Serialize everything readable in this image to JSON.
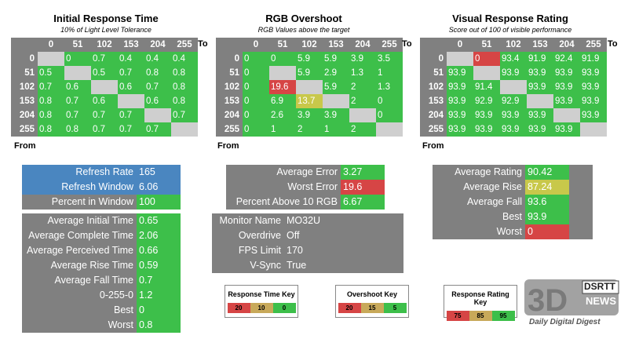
{
  "colors": {
    "grey": "#808080",
    "blank": "#cfcfcf",
    "green": "#3dbf4a",
    "yellow": "#c8c84a",
    "red": "#d64545",
    "blue": "#4a86c0",
    "keyRed": "#d64545",
    "keyTan": "#c8a95a",
    "keyGreen": "#3dbf4a"
  },
  "axes": {
    "cols": [
      "0",
      "51",
      "102",
      "153",
      "204",
      "255"
    ],
    "rows": [
      "0",
      "51",
      "102",
      "153",
      "204",
      "255"
    ],
    "to": "To",
    "from": "From"
  },
  "chart_data": [
    {
      "type": "heatmap",
      "title": "Initial Response Time",
      "subtitle": "10% of Light Level Tolerance",
      "values": [
        [
          null,
          "0",
          "0.7",
          "0.4",
          "0.4",
          "0.4"
        ],
        [
          "0.5",
          null,
          "0.5",
          "0.7",
          "0.8",
          "0.8"
        ],
        [
          "0.7",
          "0.6",
          null,
          "0.6",
          "0.7",
          "0.8"
        ],
        [
          "0.8",
          "0.7",
          "0.6",
          null,
          "0.6",
          "0.8"
        ],
        [
          "0.8",
          "0.7",
          "0.7",
          "0.7",
          null,
          "0.7"
        ],
        [
          "0.8",
          "0.8",
          "0.7",
          "0.7",
          "0.7",
          null
        ]
      ],
      "colorsGrid": [
        [
          "b",
          "g",
          "g",
          "g",
          "g",
          "g"
        ],
        [
          "g",
          "b",
          "g",
          "g",
          "g",
          "g"
        ],
        [
          "g",
          "g",
          "b",
          "g",
          "g",
          "g"
        ],
        [
          "g",
          "g",
          "g",
          "b",
          "g",
          "g"
        ],
        [
          "g",
          "g",
          "g",
          "g",
          "b",
          "g"
        ],
        [
          "g",
          "g",
          "g",
          "g",
          "g",
          "b"
        ]
      ]
    },
    {
      "type": "heatmap",
      "title": "RGB Overshoot",
      "subtitle": "RGB Values above the target",
      "values": [
        [
          "0",
          "0",
          "5.9",
          "5.9",
          "3.9",
          "3.5"
        ],
        [
          "0",
          null,
          "5.9",
          "2.9",
          "1.3",
          "1"
        ],
        [
          "0",
          "19.6",
          null,
          "5.9",
          "2",
          "1.3"
        ],
        [
          "0",
          "6.9",
          "13.7",
          null,
          "2",
          "0"
        ],
        [
          "0",
          "2.6",
          "3.9",
          "3.9",
          null,
          "0"
        ],
        [
          "0",
          "1",
          "2",
          "1",
          "2",
          null
        ]
      ],
      "colorsGrid": [
        [
          "g",
          "g",
          "g",
          "g",
          "g",
          "g"
        ],
        [
          "g",
          "b",
          "g",
          "g",
          "g",
          "g"
        ],
        [
          "g",
          "r",
          "b",
          "g",
          "g",
          "g"
        ],
        [
          "g",
          "g",
          "y",
          "b",
          "g",
          "g"
        ],
        [
          "g",
          "g",
          "g",
          "g",
          "b",
          "g"
        ],
        [
          "g",
          "g",
          "g",
          "g",
          "g",
          "b"
        ]
      ]
    },
    {
      "type": "heatmap",
      "title": "Visual Response Rating",
      "subtitle": "Score out of 100 of visible performance",
      "values": [
        [
          null,
          "0",
          "93.4",
          "91.9",
          "92.4",
          "91.9"
        ],
        [
          "93.9",
          null,
          "93.9",
          "93.9",
          "93.9",
          "93.9"
        ],
        [
          "93.9",
          "91.4",
          null,
          "93.9",
          "93.9",
          "93.9"
        ],
        [
          "93.9",
          "92.9",
          "92.9",
          null,
          "93.9",
          "93.9"
        ],
        [
          "93.9",
          "93.9",
          "93.9",
          "93.9",
          null,
          "93.9"
        ],
        [
          "93.9",
          "93.9",
          "93.9",
          "93.9",
          "93.9",
          null
        ]
      ],
      "colorsGrid": [
        [
          "b",
          "r",
          "g",
          "g",
          "g",
          "g"
        ],
        [
          "g",
          "b",
          "g",
          "g",
          "g",
          "g"
        ],
        [
          "g",
          "g",
          "b",
          "g",
          "g",
          "g"
        ],
        [
          "g",
          "g",
          "g",
          "b",
          "g",
          "g"
        ],
        [
          "g",
          "g",
          "g",
          "g",
          "b",
          "g"
        ],
        [
          "g",
          "g",
          "g",
          "g",
          "g",
          "b"
        ]
      ]
    }
  ],
  "refresh": [
    {
      "label": "Refresh Rate",
      "value": "165",
      "c": "blue"
    },
    {
      "label": "Refresh Window",
      "value": "6.06",
      "c": "blue"
    },
    {
      "label": "Percent in Window",
      "value": "100",
      "c": "green"
    }
  ],
  "errors": [
    {
      "label": "Average Error",
      "value": "3.27",
      "c": "green"
    },
    {
      "label": "Worst Error",
      "value": "19.6",
      "c": "red"
    },
    {
      "label": "Percent Above 10 RGB",
      "value": "6.67",
      "c": "green"
    }
  ],
  "ratings": [
    {
      "label": "Average Rating",
      "value": "90.42",
      "c": "green"
    },
    {
      "label": "Average Rise",
      "value": "87.24",
      "c": "yellow"
    },
    {
      "label": "Average Fall",
      "value": "93.6",
      "c": "green"
    },
    {
      "label": "Best",
      "value": "93.9",
      "c": "green"
    },
    {
      "label": "Worst",
      "value": "0",
      "c": "red"
    }
  ],
  "times": [
    {
      "label": "Average Initial Time",
      "value": "0.65",
      "c": "green"
    },
    {
      "label": "Average Complete Time",
      "value": "2.06",
      "c": "green"
    },
    {
      "label": "Average Perceived Time",
      "value": "0.66",
      "c": "green"
    },
    {
      "label": "Average Rise Time",
      "value": "0.59",
      "c": "green"
    },
    {
      "label": "Average Fall Time",
      "value": "0.7",
      "c": "green"
    },
    {
      "label": "0-255-0",
      "value": "1.2",
      "c": "green"
    },
    {
      "label": "Best",
      "value": "0",
      "c": "green"
    },
    {
      "label": "Worst",
      "value": "0.8",
      "c": "green"
    }
  ],
  "monitor": [
    {
      "label": "Monitor Name",
      "value": "MO32U"
    },
    {
      "label": "Overdrive",
      "value": "Off"
    },
    {
      "label": "FPS Limit",
      "value": "170"
    },
    {
      "label": "V-Sync",
      "value": "True"
    }
  ],
  "keys": [
    {
      "title": "Response Time Key",
      "items": [
        "20",
        "10",
        "0"
      ]
    },
    {
      "title": "Overshoot Key",
      "items": [
        "20",
        "15",
        "5"
      ]
    },
    {
      "title": "Response Rating Key",
      "items": [
        "75",
        "85",
        "95"
      ]
    }
  ],
  "watermark": {
    "logo": "DSRTT",
    "brand": "NEWS",
    "tagline": "Daily Digital Digest"
  }
}
